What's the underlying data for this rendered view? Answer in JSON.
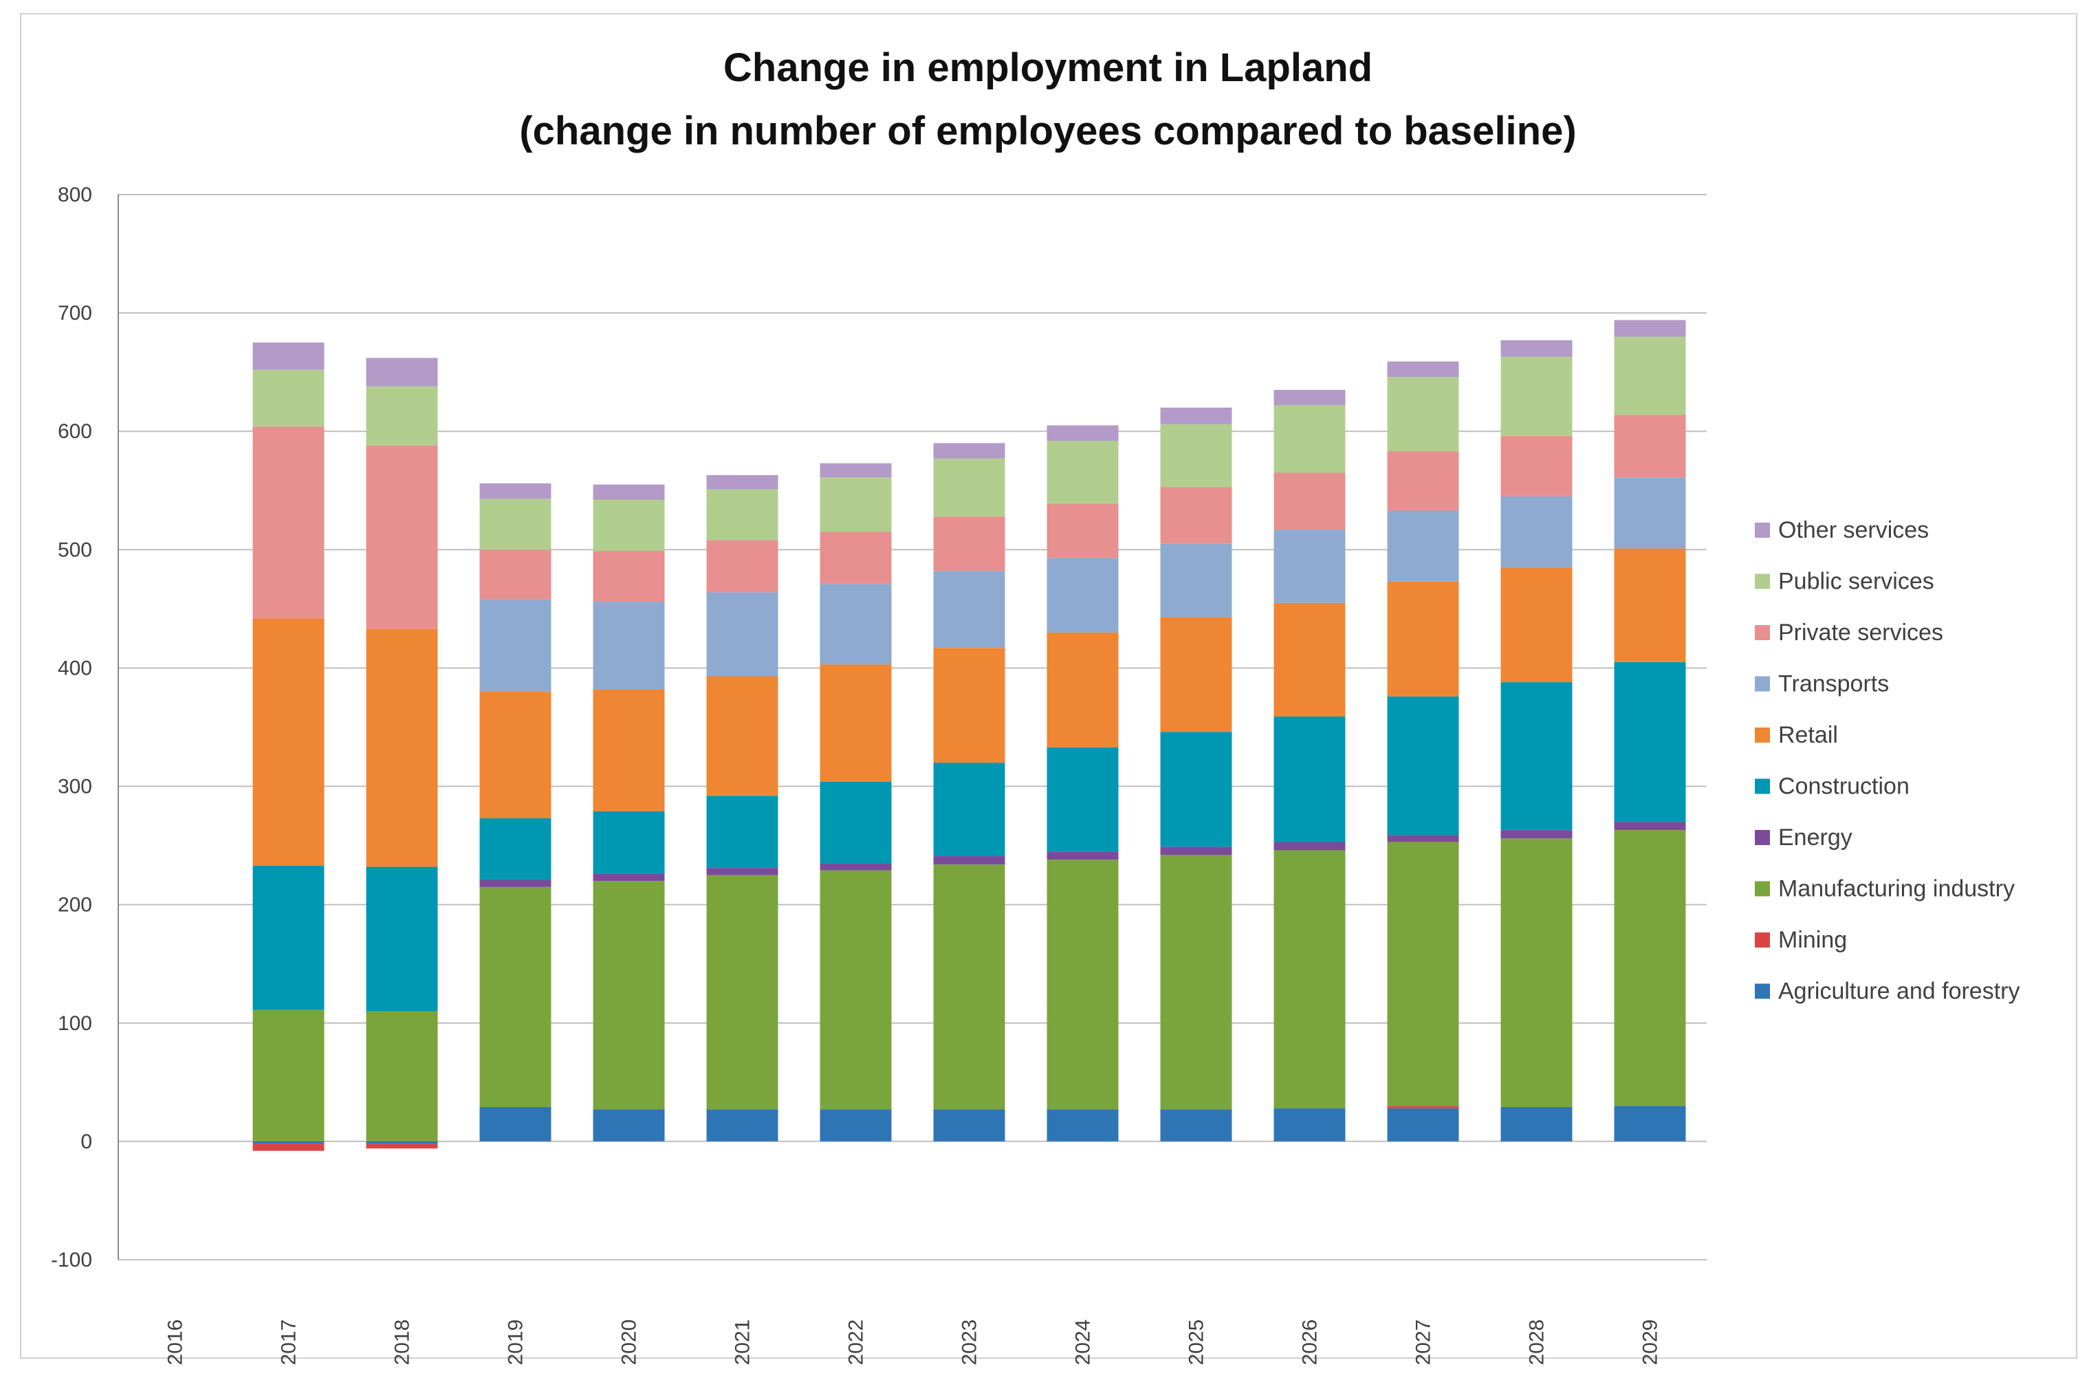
{
  "chart_data": {
    "type": "bar",
    "stacked": true,
    "title": "Change in employment in Lapland",
    "subtitle": "(change in number of employees compared to baseline)",
    "xlabel": "",
    "ylabel": "",
    "ylim": [
      -100,
      800
    ],
    "yticks": [
      -100,
      0,
      100,
      200,
      300,
      400,
      500,
      600,
      700,
      800
    ],
    "ytick_labels": [
      "-100",
      "0",
      "100",
      "200",
      "300",
      "400",
      "500",
      "600",
      "700",
      "800"
    ],
    "grid": true,
    "legend_position": "right",
    "categories": [
      "2016",
      "2017",
      "2018",
      "2019",
      "2020",
      "2021",
      "2022",
      "2023",
      "2024",
      "2025",
      "2026",
      "2027",
      "2028",
      "2029"
    ],
    "series": [
      {
        "name": "Agriculture and forestry",
        "color": "#2e75b6",
        "values": [
          0,
          -2,
          -2,
          29,
          27,
          27,
          27,
          27,
          27,
          27,
          28,
          28,
          29,
          30
        ]
      },
      {
        "name": "Mining",
        "color": "#d94545",
        "values": [
          0,
          -6,
          -4,
          0,
          0,
          0,
          0,
          0,
          0,
          0,
          0,
          2,
          0,
          0
        ]
      },
      {
        "name": "Manufacturing industry",
        "color": "#7aa53c",
        "values": [
          0,
          111,
          110,
          186,
          193,
          198,
          202,
          207,
          211,
          215,
          218,
          223,
          227,
          233
        ]
      },
      {
        "name": "Energy",
        "color": "#7b4a9b",
        "values": [
          0,
          0,
          0,
          6,
          6,
          6,
          6,
          7,
          7,
          7,
          7,
          6,
          7,
          7
        ]
      },
      {
        "name": "Construction",
        "color": "#0097b2",
        "values": [
          0,
          122,
          122,
          52,
          53,
          61,
          69,
          79,
          88,
          97,
          106,
          117,
          125,
          135
        ]
      },
      {
        "name": "Retail",
        "color": "#ef8633",
        "values": [
          0,
          209,
          201,
          107,
          103,
          101,
          99,
          97,
          97,
          97,
          96,
          97,
          97,
          96
        ]
      },
      {
        "name": "Transports",
        "color": "#8eaad0",
        "values": [
          0,
          0,
          0,
          78,
          74,
          71,
          68,
          65,
          63,
          62,
          62,
          60,
          60,
          60
        ]
      },
      {
        "name": "Private services",
        "color": "#e7908f",
        "values": [
          0,
          162,
          155,
          42,
          43,
          44,
          44,
          46,
          46,
          48,
          48,
          50,
          51,
          53
        ]
      },
      {
        "name": "Public services",
        "color": "#b1ce8f",
        "values": [
          0,
          48,
          50,
          43,
          43,
          43,
          46,
          49,
          53,
          53,
          57,
          63,
          67,
          66
        ]
      },
      {
        "name": "Other services",
        "color": "#b39ac8",
        "values": [
          0,
          23,
          24,
          13,
          13,
          12,
          12,
          13,
          13,
          14,
          13,
          13,
          14,
          14
        ]
      }
    ]
  }
}
